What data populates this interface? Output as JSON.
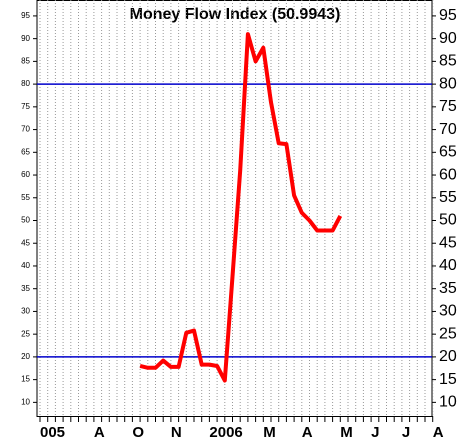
{
  "chart_data": {
    "type": "line",
    "title": "Money Flow Index (50.9943)",
    "categories": [
      "005",
      null,
      null,
      null,
      null,
      null,
      null,
      "A",
      null,
      null,
      null,
      null,
      "O",
      null,
      null,
      null,
      null,
      "N",
      null,
      null,
      null,
      null,
      "2006",
      null,
      null,
      null,
      null,
      null,
      null,
      "M",
      null,
      null,
      null,
      null,
      "A",
      null,
      null,
      null,
      null,
      "M",
      null,
      null,
      null,
      "J",
      null,
      null,
      null,
      "J",
      null,
      null,
      null,
      "A"
    ],
    "series": [
      {
        "name": "Money Flow Index",
        "color": "#ff0000",
        "values": [
          null,
          null,
          null,
          null,
          null,
          null,
          null,
          null,
          null,
          null,
          null,
          null,
          null,
          18,
          17.6,
          17.6,
          19.2,
          17.8,
          17.8,
          25.3,
          25.8,
          18.3,
          18.3,
          18,
          14.8,
          37.7,
          61,
          91,
          85,
          88,
          76,
          67,
          66.8,
          55.5,
          51.7,
          50,
          47.8,
          47.8,
          47.8,
          51,
          null,
          null,
          null,
          null,
          null,
          null,
          null,
          null,
          null,
          null,
          null,
          null
        ]
      }
    ],
    "reference_lines": [
      20,
      80
    ],
    "reference_color": "#0000cc",
    "ylim": [
      7,
      98.5
    ],
    "yticks": [
      10,
      15,
      20,
      25,
      30,
      35,
      40,
      45,
      50,
      55,
      60,
      65,
      70,
      75,
      80,
      85,
      90,
      95
    ],
    "grid": true
  }
}
